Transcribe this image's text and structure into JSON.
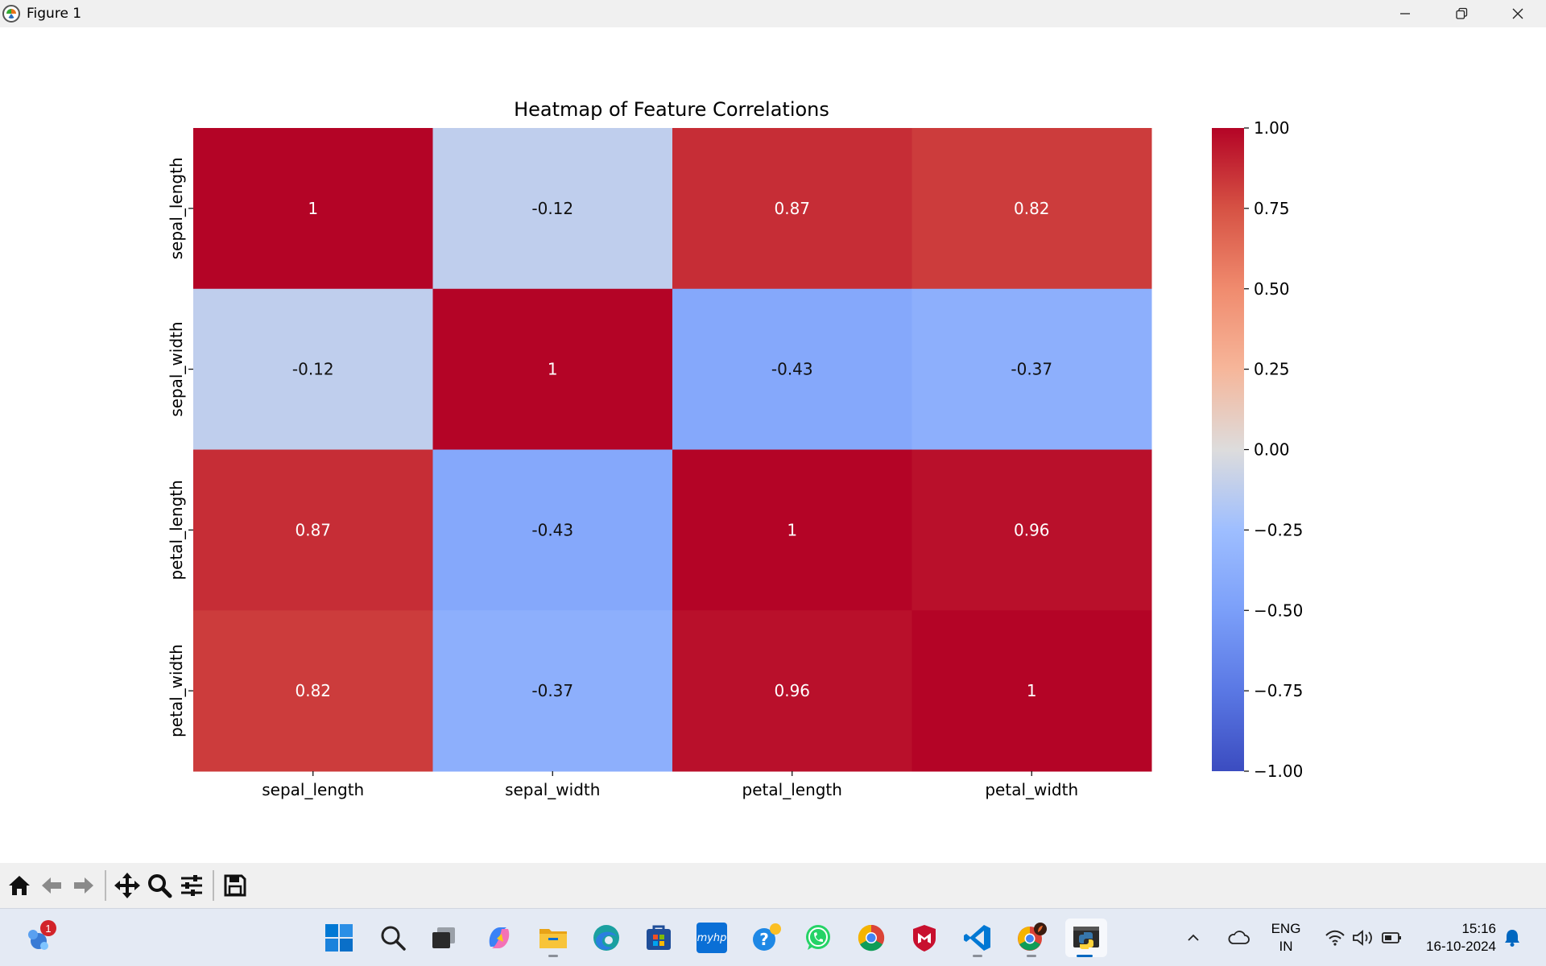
{
  "window": {
    "title": "Figure 1",
    "controls": [
      "minimize",
      "restore",
      "close"
    ]
  },
  "chart_data": {
    "type": "heatmap",
    "title": "Heatmap of Feature Correlations",
    "x_labels": [
      "sepal_length",
      "sepal_width",
      "petal_length",
      "petal_width"
    ],
    "y_labels": [
      "sepal_length",
      "sepal_width",
      "petal_length",
      "petal_width"
    ],
    "values": [
      [
        1,
        -0.12,
        0.87,
        0.82
      ],
      [
        -0.12,
        1,
        -0.43,
        -0.37
      ],
      [
        0.87,
        -0.43,
        1,
        0.96
      ],
      [
        0.82,
        -0.37,
        0.96,
        1
      ]
    ],
    "annotations": [
      [
        "1",
        "-0.12",
        "0.87",
        "0.82"
      ],
      [
        "-0.12",
        "1",
        "-0.43",
        "-0.37"
      ],
      [
        "0.87",
        "-0.43",
        "1",
        "0.96"
      ],
      [
        "0.82",
        "-0.37",
        "0.96",
        "1"
      ]
    ],
    "colormap": "coolwarm",
    "colorbar": {
      "vmin": -1.0,
      "vmax": 1.0,
      "ticks": [
        1.0,
        0.75,
        0.5,
        0.25,
        0.0,
        -0.25,
        -0.5,
        -0.75,
        -1.0
      ],
      "tick_labels": [
        "1.00",
        "0.75",
        "0.50",
        "0.25",
        "0.00",
        "−0.25",
        "−0.50",
        "−0.75",
        "−1.00"
      ]
    },
    "xlabel": "",
    "ylabel": ""
  },
  "toolbar": {
    "buttons": [
      "home-icon",
      "back-icon",
      "forward-icon",
      "pan-icon",
      "zoom-icon",
      "configure-subplots-icon",
      "save-icon"
    ]
  },
  "taskbar": {
    "widgets_badge": "1",
    "apps": [
      "start-icon",
      "search-icon",
      "task-view-icon",
      "copilot-icon",
      "file-explorer-icon",
      "edge-icon",
      "microsoft-store-icon",
      "myhp-icon",
      "get-help-icon",
      "whatsapp-icon",
      "chrome-icon",
      "mcafee-icon",
      "vscode-icon",
      "chrome-profile-icon",
      "python-icon"
    ],
    "myhp_label": "myhp",
    "tray": {
      "lang_line1": "ENG",
      "lang_line2": "IN",
      "time": "15:16",
      "date": "16-10-2024"
    }
  }
}
